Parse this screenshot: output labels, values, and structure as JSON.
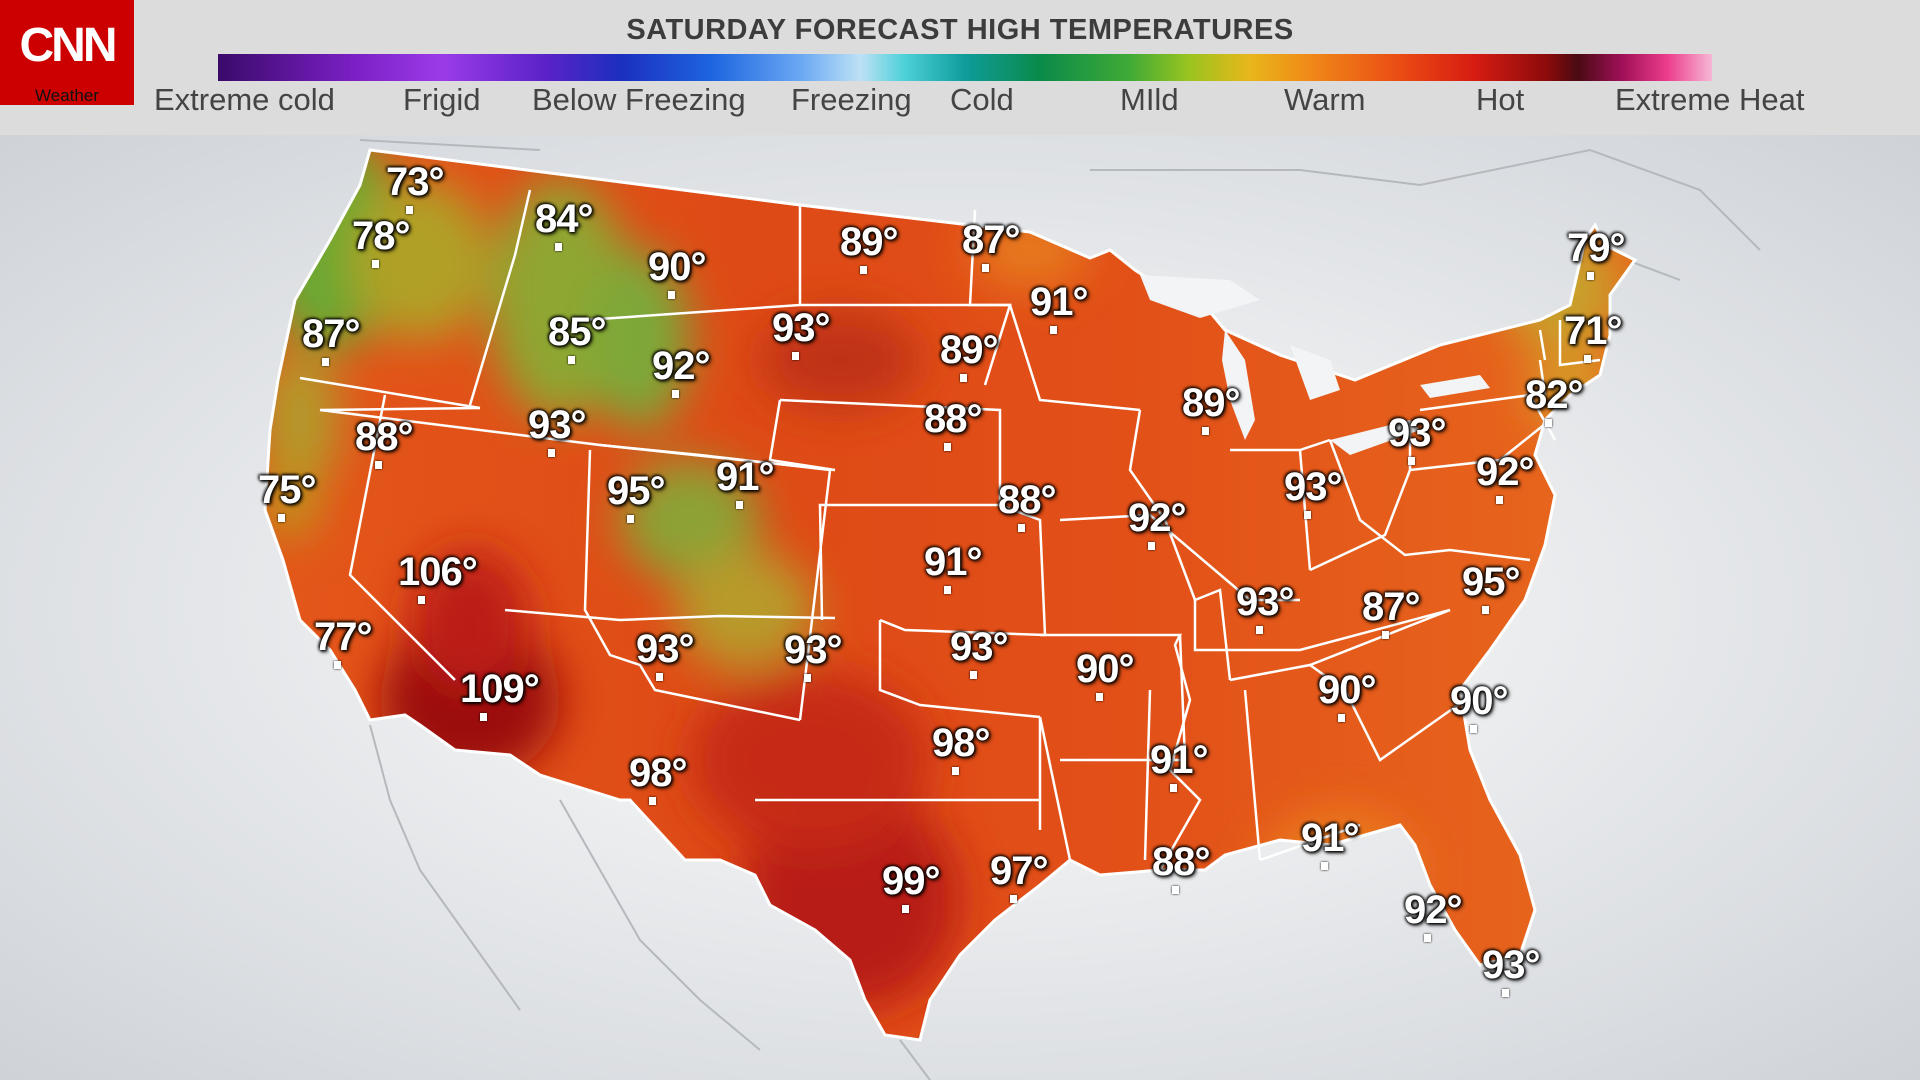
{
  "brand": {
    "logo": "CNN",
    "sub": "Weather",
    "color": "#cc0000"
  },
  "title": "SATURDAY FORECAST HIGH TEMPERATURES",
  "legend": {
    "labels": [
      "Extreme cold",
      "Frigid",
      "Below Freezing",
      "Freezing",
      "Cold",
      "MIld",
      "Warm",
      "Hot",
      "Extreme Heat"
    ]
  },
  "colors": {
    "extreme_cold": "#3a0a6a",
    "freezing": "#bde1f5",
    "mild": "#3faa35",
    "warm": "#f08a18",
    "hot": "#d81c12",
    "extreme_heat": "#f7b8d4"
  },
  "temperatures": [
    "73°",
    "78°",
    "84°",
    "90°",
    "89°",
    "87°",
    "79°",
    "87°",
    "85°",
    "93°",
    "91°",
    "89°",
    "71°",
    "92°",
    "82°",
    "88°",
    "93°",
    "88°",
    "89°",
    "93°",
    "75°",
    "95°",
    "91°",
    "88°",
    "93°",
    "92°",
    "92°",
    "106°",
    "91°",
    "95°",
    "93°",
    "87°",
    "77°",
    "93°",
    "93°",
    "93°",
    "90°",
    "90°",
    "90°",
    "109°",
    "98°",
    "98°",
    "91°",
    "88°",
    "91°",
    "99°",
    "97°",
    "92°",
    "93°"
  ]
}
